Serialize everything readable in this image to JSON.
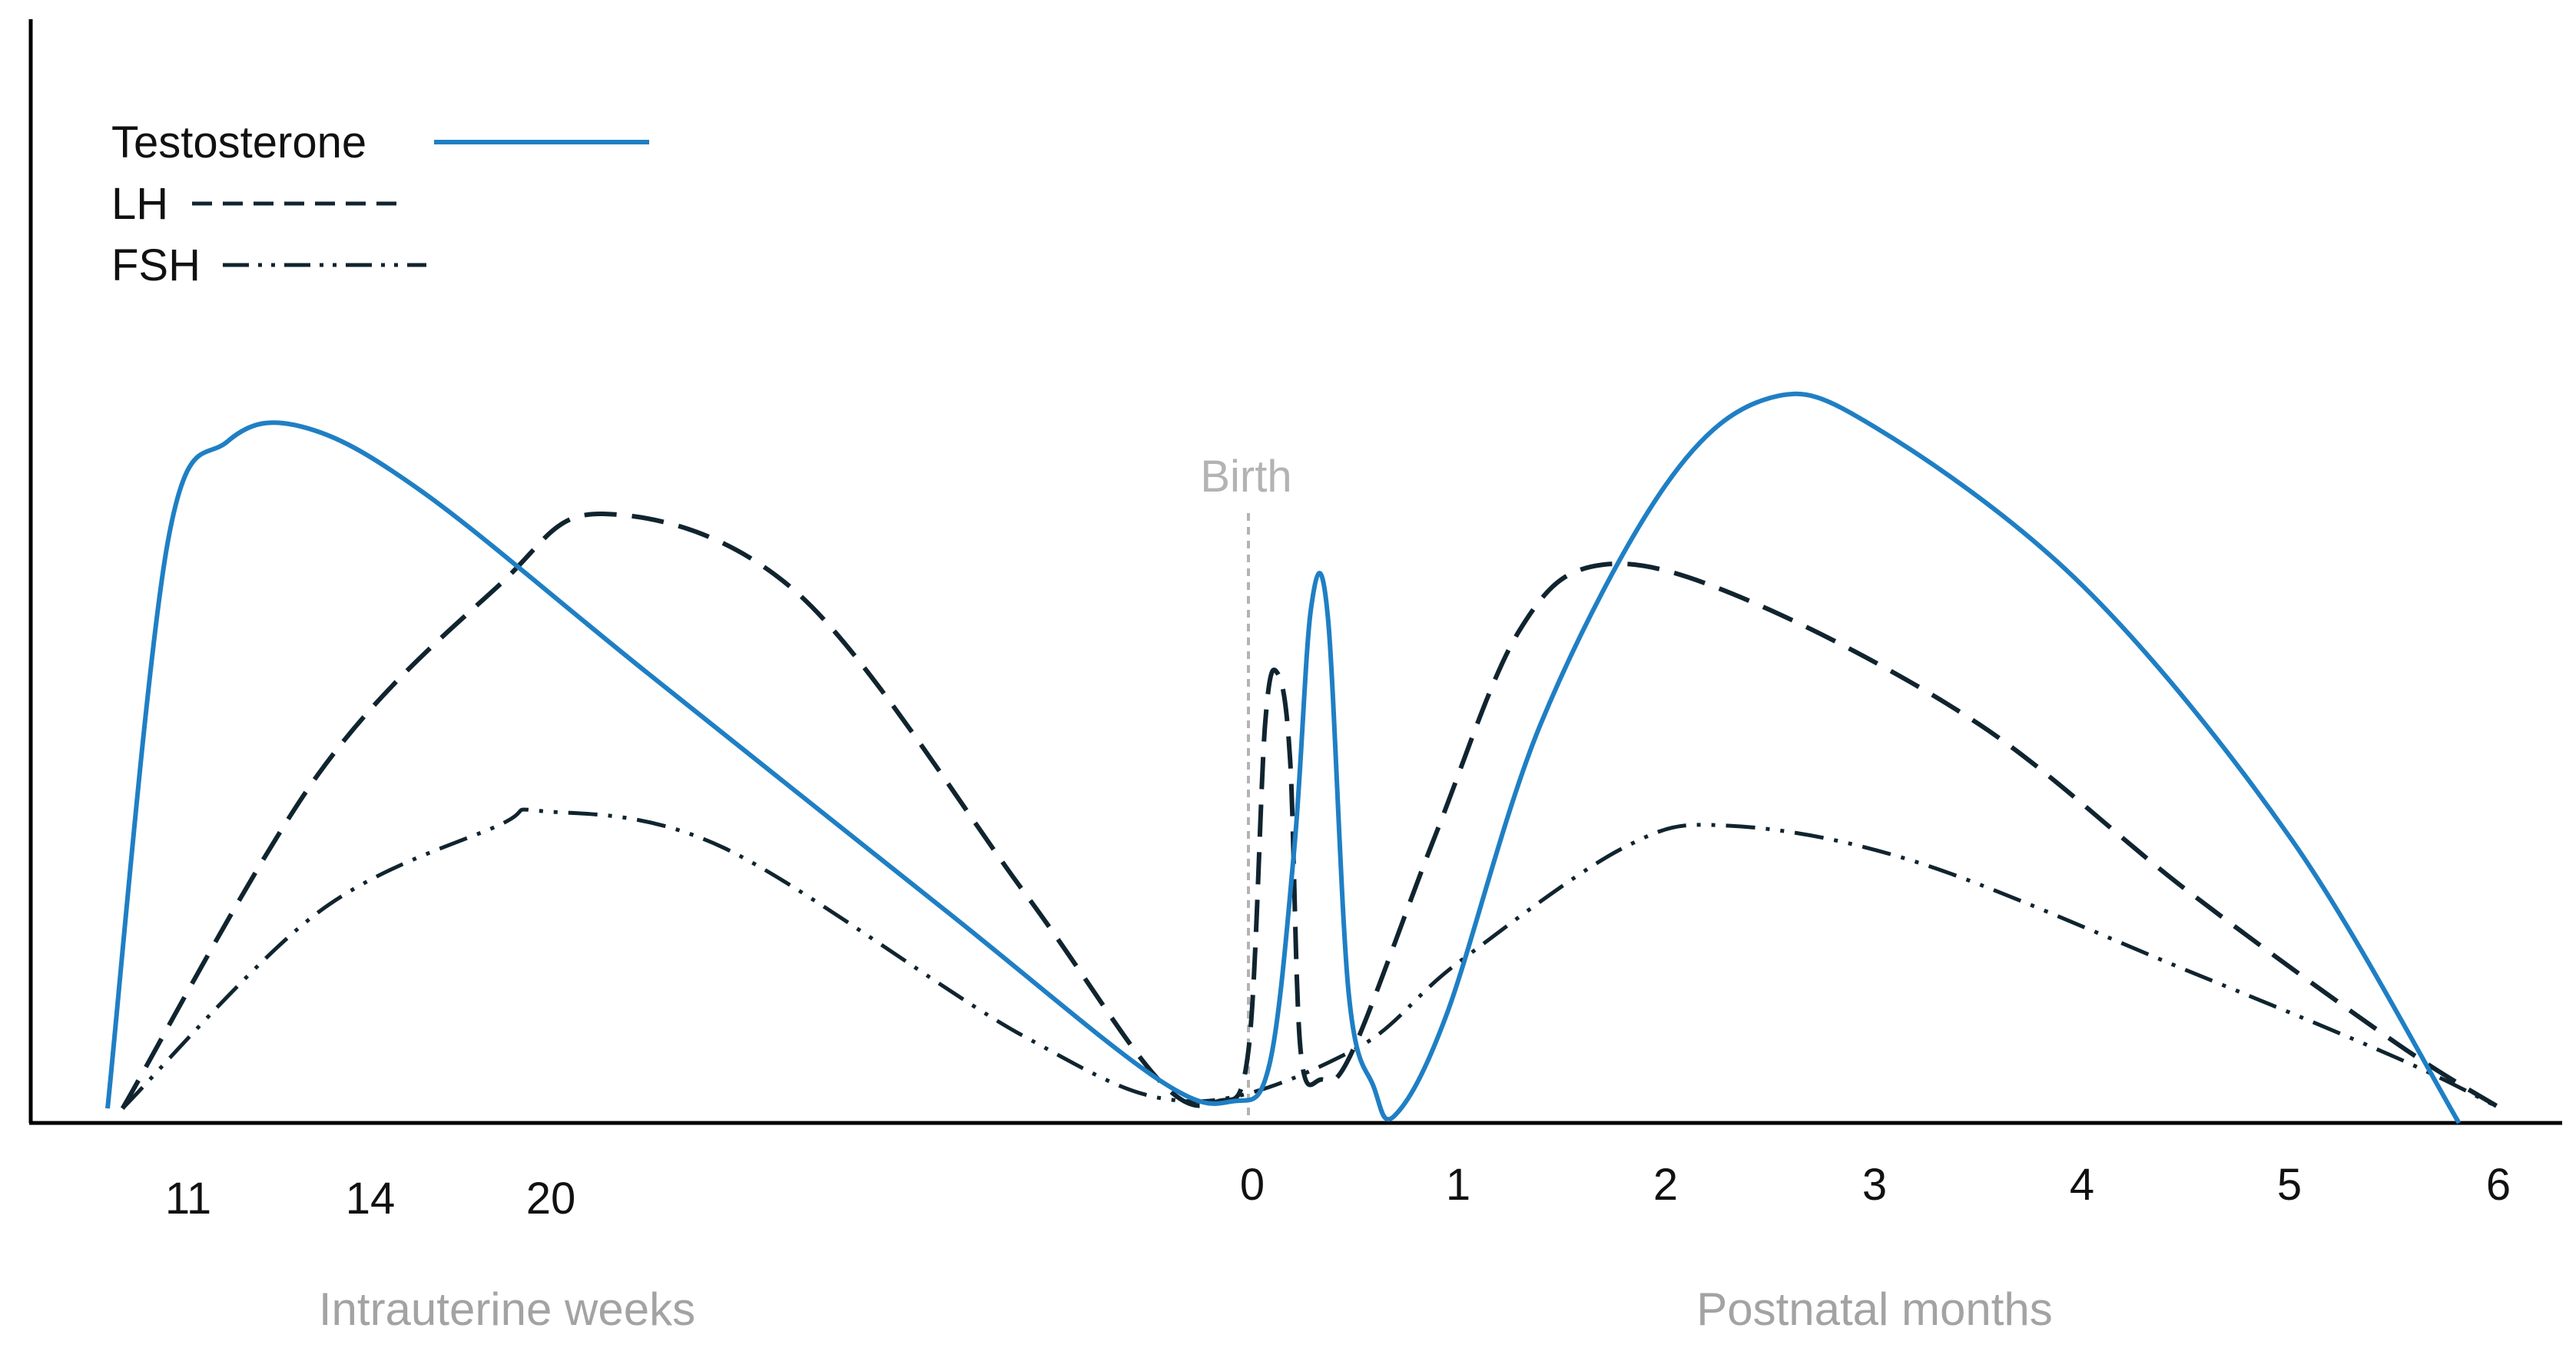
{
  "chart_data": {
    "type": "line",
    "title": "",
    "ylabel": "",
    "grid": false,
    "legend_position": "top-left",
    "x_ticks": [
      "11",
      "14",
      "20",
      "0",
      "1",
      "2",
      "3",
      "4",
      "5",
      "6"
    ],
    "x_groups": [
      {
        "label": "Intrauterine weeks",
        "range": [
          "11",
          "20"
        ]
      },
      {
        "label": "Postnatal months",
        "range": [
          "0",
          "6"
        ]
      }
    ],
    "annotations": [
      {
        "label": "Birth",
        "at_month": 0
      }
    ],
    "colors": {
      "testosterone": "#1f7fc4",
      "lh": "#10242f",
      "fsh": "#10242f",
      "birth_line": "#b3b3b3",
      "axis": "#000000"
    },
    "series": [
      {
        "name": "Testosterone",
        "style": "solid",
        "points": [
          [
            -7.6,
            0.02
          ],
          [
            -7.2,
            0.8
          ],
          [
            -6.8,
            0.94
          ],
          [
            -6.3,
            0.96
          ],
          [
            -5.5,
            0.87
          ],
          [
            -4.0,
            0.62
          ],
          [
            -2.0,
            0.29
          ],
          [
            -0.6,
            0.06
          ],
          [
            -0.1,
            0.03
          ],
          [
            0.1,
            0.08
          ],
          [
            0.22,
            0.38
          ],
          [
            0.3,
            0.71
          ],
          [
            0.38,
            0.7
          ],
          [
            0.48,
            0.18
          ],
          [
            0.6,
            0.05
          ],
          [
            0.7,
            0.01
          ],
          [
            0.95,
            0.15
          ],
          [
            1.4,
            0.55
          ],
          [
            2.0,
            0.88
          ],
          [
            2.5,
            1.0
          ],
          [
            3.0,
            0.96
          ],
          [
            4.0,
            0.74
          ],
          [
            5.0,
            0.39
          ],
          [
            5.8,
            0.0
          ]
        ]
      },
      {
        "name": "LH",
        "style": "dashed",
        "points": [
          [
            -7.5,
            0.02
          ],
          [
            -6.2,
            0.48
          ],
          [
            -5.0,
            0.74
          ],
          [
            -4.3,
            0.84
          ],
          [
            -3.0,
            0.73
          ],
          [
            -1.5,
            0.32
          ],
          [
            -0.6,
            0.06
          ],
          [
            -0.2,
            0.03
          ],
          [
            0.0,
            0.1
          ],
          [
            0.08,
            0.55
          ],
          [
            0.14,
            0.62
          ],
          [
            0.2,
            0.5
          ],
          [
            0.25,
            0.1
          ],
          [
            0.35,
            0.06
          ],
          [
            0.5,
            0.1
          ],
          [
            0.9,
            0.4
          ],
          [
            1.3,
            0.68
          ],
          [
            1.7,
            0.77
          ],
          [
            2.4,
            0.72
          ],
          [
            3.5,
            0.55
          ],
          [
            4.5,
            0.32
          ],
          [
            5.5,
            0.11
          ],
          [
            6.0,
            0.02
          ]
        ]
      },
      {
        "name": "FSH",
        "style": "dash-dot-dot",
        "points": [
          [
            -7.5,
            0.02
          ],
          [
            -6.2,
            0.29
          ],
          [
            -5.0,
            0.41
          ],
          [
            -4.7,
            0.43
          ],
          [
            -3.5,
            0.38
          ],
          [
            -1.5,
            0.12
          ],
          [
            -0.4,
            0.03
          ],
          [
            0.5,
            0.1
          ],
          [
            1.0,
            0.22
          ],
          [
            1.8,
            0.38
          ],
          [
            2.3,
            0.41
          ],
          [
            3.2,
            0.36
          ],
          [
            4.5,
            0.21
          ],
          [
            5.5,
            0.09
          ],
          [
            6.0,
            0.02
          ]
        ]
      }
    ]
  }
}
